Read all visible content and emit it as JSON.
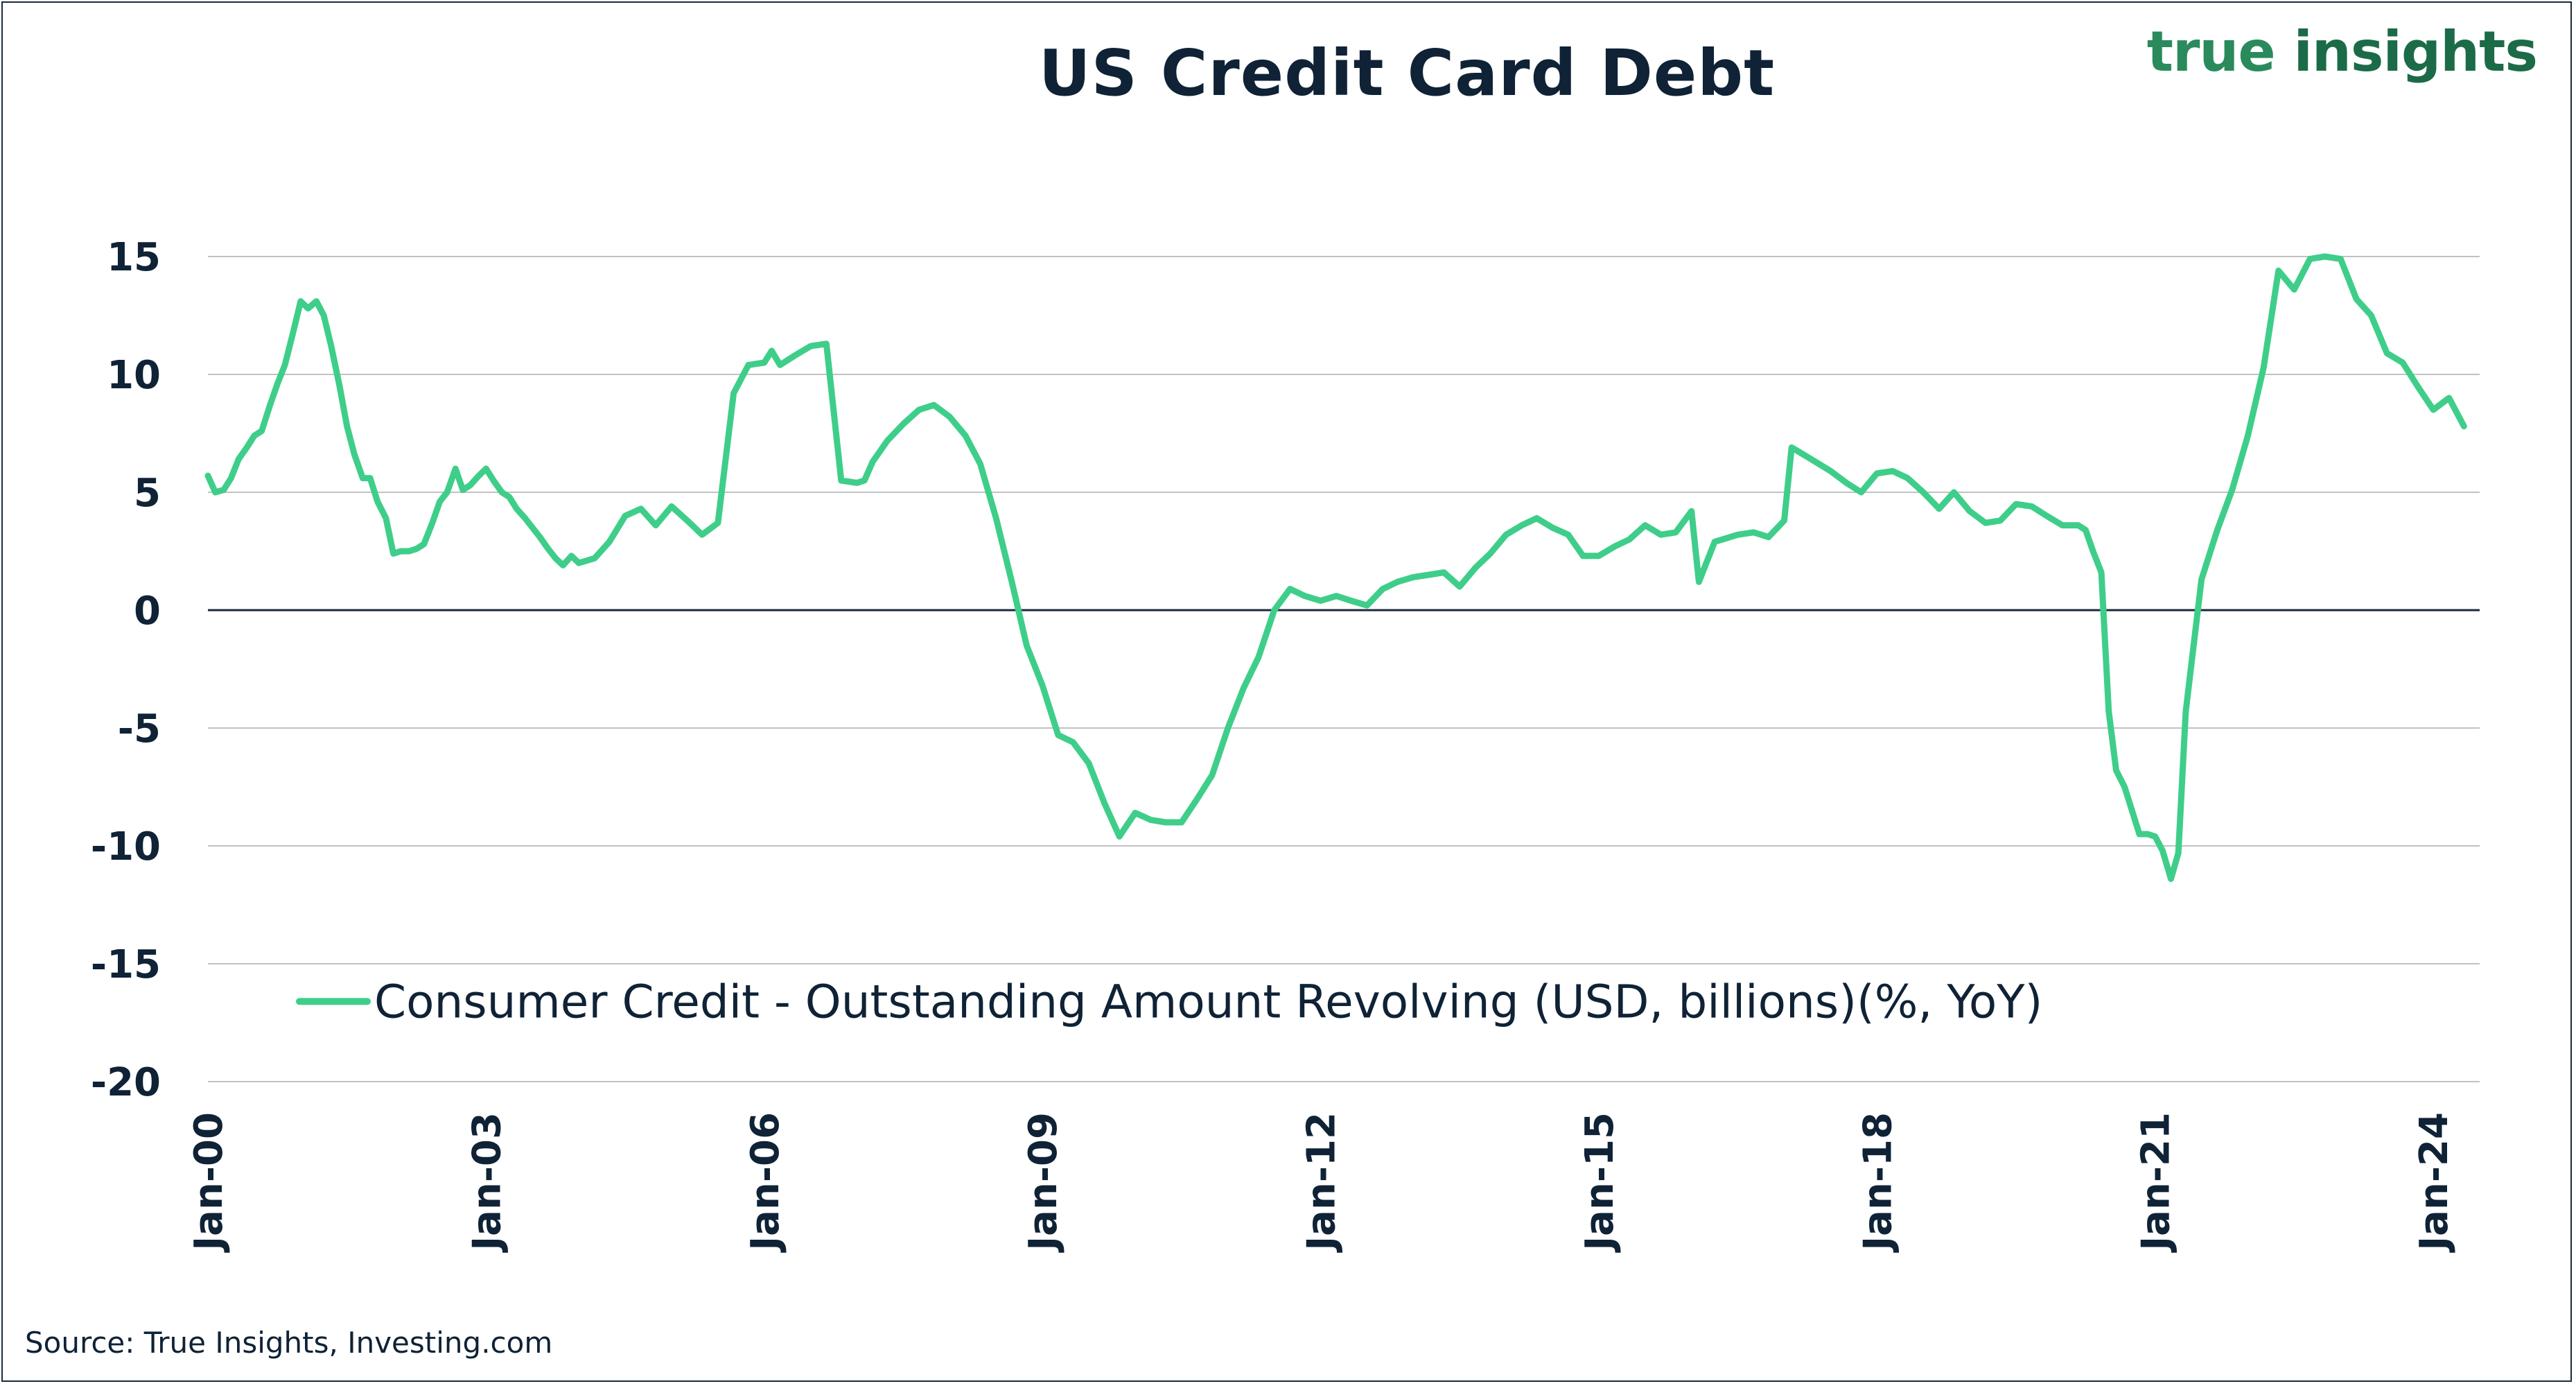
{
  "header": {
    "title": "US Credit Card Debt",
    "brand_part1": "true",
    "brand_part2": "insights"
  },
  "footer": {
    "source": "Source: True Insights, Investing.com"
  },
  "colors": {
    "line": "#3fce8a",
    "text": "#0f2236",
    "grid": "#c2c2c2",
    "zero": "#1b2a3a",
    "brand": "#1c6b48"
  },
  "chart_data": {
    "type": "line",
    "title": "US Credit Card Debt",
    "xlabel": "",
    "ylabel": "",
    "ylim": [
      -20,
      15
    ],
    "yticks": [
      15,
      10,
      5,
      0,
      -5,
      -10,
      -15,
      -20
    ],
    "yticklabels": [
      "15",
      "10",
      "5",
      "0",
      "-5",
      "-10",
      "-15",
      "-20"
    ],
    "xlim": [
      2000.0,
      2024.5
    ],
    "xticks": [
      2000,
      2003,
      2006,
      2009,
      2012,
      2015,
      2018,
      2021,
      2024
    ],
    "xticklabels": [
      "Jan-00",
      "Jan-03",
      "Jan-06",
      "Jan-09",
      "Jan-12",
      "Jan-15",
      "Jan-18",
      "Jan-21",
      "Jan-24"
    ],
    "grid": true,
    "legend_position": "bottom-left",
    "series": [
      {
        "name": "Consumer Credit - Outstanding Amount Revolving (USD, billions)(%, YoY)",
        "x": [
          2000.0,
          2000.08,
          2000.17,
          2000.25,
          2000.33,
          2000.42,
          2000.5,
          2000.58,
          2000.67,
          2000.75,
          2000.83,
          2000.92,
          2001.0,
          2001.08,
          2001.17,
          2001.25,
          2001.33,
          2001.42,
          2001.5,
          2001.58,
          2001.67,
          2001.75,
          2001.83,
          2001.92,
          2002.0,
          2002.08,
          2002.17,
          2002.25,
          2002.33,
          2002.42,
          2002.5,
          2002.58,
          2002.67,
          2002.75,
          2002.83,
          2002.92,
          2003.0,
          2003.08,
          2003.17,
          2003.25,
          2003.33,
          2003.42,
          2003.5,
          2003.58,
          2003.67,
          2003.75,
          2003.83,
          2003.92,
          2004.0,
          2004.17,
          2004.33,
          2004.5,
          2004.67,
          2004.83,
          2005.0,
          2005.17,
          2005.33,
          2005.5,
          2005.67,
          2005.83,
          2006.0,
          2006.08,
          2006.17,
          2006.33,
          2006.5,
          2006.67,
          2006.83,
          2007.0,
          2007.08,
          2007.17,
          2007.33,
          2007.5,
          2007.67,
          2007.83,
          2008.0,
          2008.17,
          2008.33,
          2008.5,
          2008.67,
          2008.83,
          2009.0,
          2009.17,
          2009.33,
          2009.5,
          2009.67,
          2009.83,
          2010.0,
          2010.17,
          2010.33,
          2010.5,
          2010.67,
          2010.83,
          2011.0,
          2011.17,
          2011.33,
          2011.5,
          2011.67,
          2011.83,
          2012.0,
          2012.17,
          2012.33,
          2012.5,
          2012.67,
          2012.83,
          2013.0,
          2013.17,
          2013.33,
          2013.5,
          2013.67,
          2013.83,
          2014.0,
          2014.17,
          2014.33,
          2014.5,
          2014.67,
          2014.83,
          2015.0,
          2015.17,
          2015.33,
          2015.5,
          2015.67,
          2015.83,
          2016.0,
          2016.08,
          2016.25,
          2016.5,
          2016.67,
          2016.83,
          2017.0,
          2017.08,
          2017.25,
          2017.5,
          2017.67,
          2017.83,
          2018.0,
          2018.17,
          2018.33,
          2018.5,
          2018.67,
          2018.83,
          2019.0,
          2019.17,
          2019.33,
          2019.5,
          2019.67,
          2019.83,
          2020.0,
          2020.17,
          2020.25,
          2020.33,
          2020.42,
          2020.5,
          2020.58,
          2020.67,
          2020.75,
          2020.83,
          2020.92,
          2021.0,
          2021.08,
          2021.17,
          2021.25,
          2021.33,
          2021.5,
          2021.67,
          2021.83,
          2022.0,
          2022.17,
          2022.33,
          2022.5,
          2022.67,
          2022.83,
          2023.0,
          2023.17,
          2023.33,
          2023.5,
          2023.67,
          2023.83,
          2024.0,
          2024.17,
          2024.33
        ],
        "values": [
          5.7,
          5.0,
          5.1,
          5.6,
          6.4,
          6.9,
          7.4,
          7.6,
          8.7,
          9.6,
          10.4,
          11.8,
          13.1,
          12.8,
          13.1,
          12.5,
          11.2,
          9.5,
          7.8,
          6.6,
          5.6,
          5.6,
          4.6,
          3.9,
          2.4,
          2.5,
          2.5,
          2.6,
          2.8,
          3.7,
          4.6,
          5.0,
          6.0,
          5.1,
          5.3,
          5.7,
          6.0,
          5.5,
          5.0,
          4.8,
          4.3,
          3.9,
          3.5,
          3.1,
          2.6,
          2.2,
          1.9,
          2.3,
          2.0,
          2.2,
          2.9,
          4.0,
          4.3,
          3.6,
          4.4,
          3.8,
          3.2,
          3.7,
          9.2,
          10.4,
          10.5,
          11.0,
          10.4,
          10.8,
          11.2,
          11.3,
          5.5,
          5.4,
          5.5,
          6.3,
          7.2,
          7.9,
          8.5,
          8.7,
          8.2,
          7.4,
          6.2,
          3.9,
          1.2,
          -1.5,
          -3.2,
          -5.3,
          -5.6,
          -6.5,
          -8.2,
          -9.6,
          -8.6,
          -8.9,
          -9.0,
          -9.0,
          -8.0,
          -7.0,
          -5.0,
          -3.3,
          -2.0,
          0.0,
          0.9,
          0.6,
          0.4,
          0.6,
          0.4,
          0.2,
          0.9,
          1.2,
          1.4,
          1.5,
          1.6,
          1.0,
          1.8,
          2.4,
          3.2,
          3.6,
          3.9,
          3.5,
          3.2,
          2.3,
          2.3,
          2.7,
          3.0,
          3.6,
          3.2,
          3.3,
          4.2,
          1.2,
          2.9,
          3.2,
          3.3,
          3.1,
          3.8,
          6.9,
          6.5,
          5.9,
          5.4,
          5.0,
          5.8,
          5.9,
          5.6,
          5.0,
          4.3,
          5.0,
          4.2,
          3.7,
          3.8,
          4.5,
          4.4,
          4.0,
          3.6,
          3.6,
          3.4,
          2.5,
          1.6,
          -4.3,
          -6.8,
          -7.5,
          -8.5,
          -9.5,
          -9.5,
          -9.6,
          -10.2,
          -11.4,
          -10.3,
          -4.3,
          1.3,
          3.4,
          5.1,
          7.4,
          10.3,
          14.4,
          13.6,
          14.9,
          15.0,
          14.9,
          13.2,
          12.5,
          10.9,
          10.5,
          9.5,
          8.5,
          9.0,
          7.8
        ]
      }
    ]
  }
}
